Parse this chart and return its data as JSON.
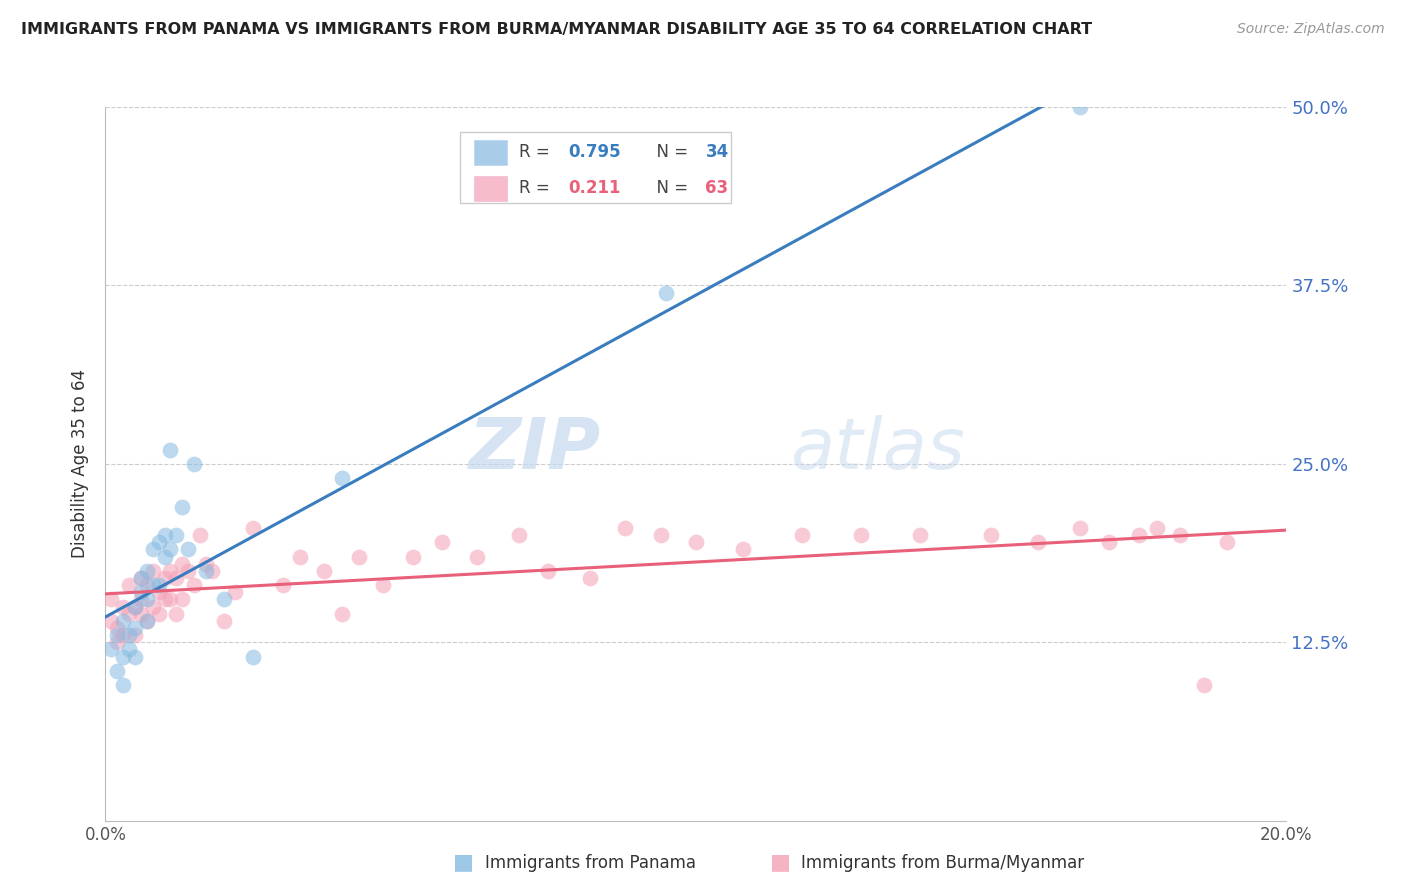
{
  "title": "IMMIGRANTS FROM PANAMA VS IMMIGRANTS FROM BURMA/MYANMAR DISABILITY AGE 35 TO 64 CORRELATION CHART",
  "source": "Source: ZipAtlas.com",
  "ylabel": "Disability Age 35 to 64",
  "xlim": [
    0.0,
    0.2
  ],
  "ylim": [
    0.0,
    0.5
  ],
  "ytick_vals": [
    0.0,
    0.125,
    0.25,
    0.375,
    0.5
  ],
  "ytick_labels": [
    "",
    "12.5%",
    "25.0%",
    "37.5%",
    "50.0%"
  ],
  "legend_R1": "0.795",
  "legend_N1": "34",
  "legend_R2": "0.211",
  "legend_N2": "63",
  "blue_color": "#85b9e0",
  "pink_color": "#f4a0b5",
  "line_blue": "#3a7dbf",
  "line_pink": "#e8607a",
  "watermark_zip": "ZIP",
  "watermark_atlas": "atlas",
  "panama_x": [
    0.001,
    0.002,
    0.002,
    0.003,
    0.003,
    0.003,
    0.004,
    0.004,
    0.005,
    0.005,
    0.005,
    0.006,
    0.006,
    0.007,
    0.007,
    0.007,
    0.008,
    0.008,
    0.009,
    0.009,
    0.01,
    0.01,
    0.011,
    0.011,
    0.012,
    0.013,
    0.014,
    0.015,
    0.017,
    0.02,
    0.025,
    0.04,
    0.095,
    0.165
  ],
  "panama_y": [
    0.12,
    0.105,
    0.13,
    0.095,
    0.115,
    0.14,
    0.13,
    0.12,
    0.135,
    0.15,
    0.115,
    0.16,
    0.17,
    0.175,
    0.14,
    0.155,
    0.165,
    0.19,
    0.195,
    0.165,
    0.185,
    0.2,
    0.19,
    0.26,
    0.2,
    0.22,
    0.19,
    0.25,
    0.175,
    0.155,
    0.115,
    0.24,
    0.37,
    0.5
  ],
  "burma_x": [
    0.001,
    0.001,
    0.002,
    0.002,
    0.003,
    0.003,
    0.004,
    0.004,
    0.005,
    0.005,
    0.006,
    0.006,
    0.006,
    0.007,
    0.007,
    0.008,
    0.008,
    0.009,
    0.009,
    0.01,
    0.01,
    0.011,
    0.011,
    0.012,
    0.012,
    0.013,
    0.013,
    0.014,
    0.015,
    0.016,
    0.017,
    0.018,
    0.02,
    0.022,
    0.025,
    0.03,
    0.033,
    0.037,
    0.04,
    0.043,
    0.047,
    0.052,
    0.057,
    0.063,
    0.07,
    0.075,
    0.082,
    0.088,
    0.094,
    0.1,
    0.108,
    0.118,
    0.128,
    0.138,
    0.15,
    0.158,
    0.165,
    0.17,
    0.175,
    0.178,
    0.182,
    0.186,
    0.19
  ],
  "burma_y": [
    0.155,
    0.14,
    0.135,
    0.125,
    0.13,
    0.15,
    0.145,
    0.165,
    0.13,
    0.15,
    0.155,
    0.17,
    0.145,
    0.14,
    0.165,
    0.15,
    0.175,
    0.145,
    0.16,
    0.155,
    0.17,
    0.155,
    0.175,
    0.145,
    0.17,
    0.155,
    0.18,
    0.175,
    0.165,
    0.2,
    0.18,
    0.175,
    0.14,
    0.16,
    0.205,
    0.165,
    0.185,
    0.175,
    0.145,
    0.185,
    0.165,
    0.185,
    0.195,
    0.185,
    0.2,
    0.175,
    0.17,
    0.205,
    0.2,
    0.195,
    0.19,
    0.2,
    0.2,
    0.2,
    0.2,
    0.195,
    0.205,
    0.195,
    0.2,
    0.205,
    0.2,
    0.095,
    0.195
  ]
}
